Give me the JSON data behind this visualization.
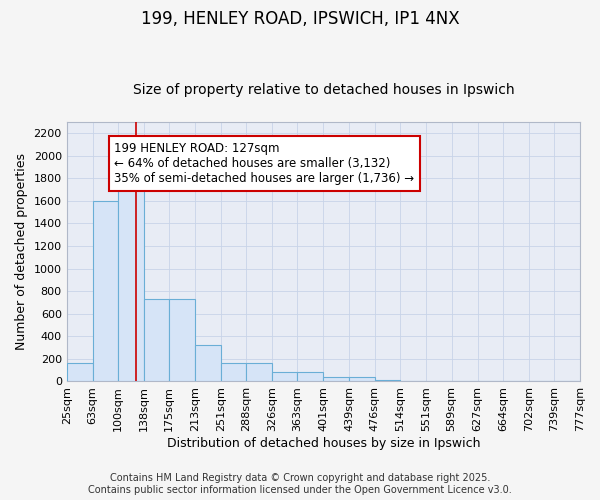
{
  "title1": "199, HENLEY ROAD, IPSWICH, IP1 4NX",
  "title2": "Size of property relative to detached houses in Ipswich",
  "xlabel": "Distribution of detached houses by size in Ipswich",
  "ylabel": "Number of detached properties",
  "bin_edges": [
    25,
    63,
    100,
    138,
    175,
    213,
    251,
    288,
    326,
    363,
    401,
    439,
    476,
    514,
    551,
    589,
    627,
    664,
    702,
    739,
    777
  ],
  "bar_heights": [
    160,
    1600,
    1800,
    730,
    730,
    320,
    160,
    160,
    80,
    80,
    40,
    40,
    15,
    0,
    0,
    0,
    0,
    0,
    0,
    0
  ],
  "bar_color": "#d6e4f7",
  "bar_edge_color": "#6aaed6",
  "property_size": 127,
  "vline_color": "#cc0000",
  "annotation_line1": "199 HENLEY ROAD: 127sqm",
  "annotation_line2": "← 64% of detached houses are smaller (3,132)",
  "annotation_line3": "35% of semi-detached houses are larger (1,736) →",
  "annotation_box_color": "#ffffff",
  "annotation_box_edge_color": "#cc0000",
  "ylim": [
    0,
    2300
  ],
  "yticks": [
    0,
    200,
    400,
    600,
    800,
    1000,
    1200,
    1400,
    1600,
    1800,
    2000,
    2200
  ],
  "grid_color": "#c8d4e8",
  "bg_color": "#e8ecf5",
  "fig_bg_color": "#f5f5f5",
  "footer_line1": "Contains HM Land Registry data © Crown copyright and database right 2025.",
  "footer_line2": "Contains public sector information licensed under the Open Government Licence v3.0.",
  "title1_fontsize": 12,
  "title2_fontsize": 10,
  "axis_label_fontsize": 9,
  "tick_fontsize": 8,
  "annotation_fontsize": 8.5,
  "footer_fontsize": 7
}
